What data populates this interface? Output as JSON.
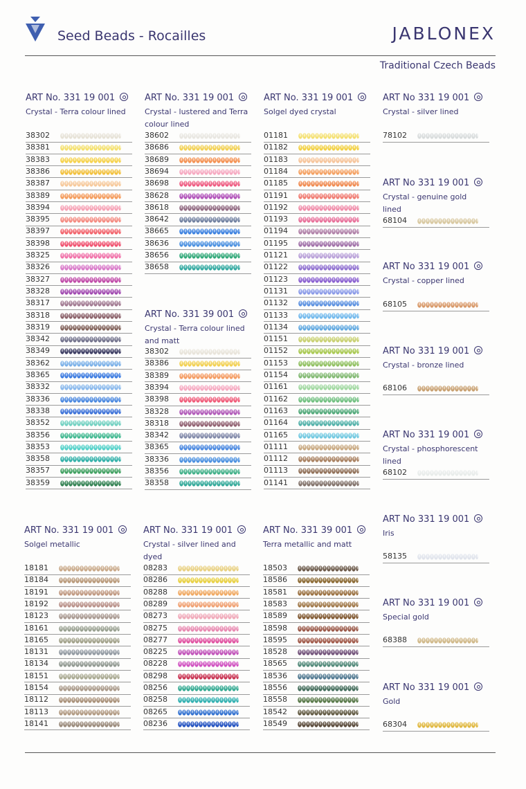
{
  "header": {
    "title": "Seed Beads - Rocailles",
    "brand": "JABLONEX",
    "subtitle": "Traditional Czech Beads"
  },
  "sections": [
    {
      "art": "ART No. 331 19 001",
      "desc": "Crystal - Terra colour lined",
      "items": [
        "38302",
        "38381",
        "38383",
        "38386",
        "38387",
        "38389",
        "38394",
        "38395",
        "38397",
        "38398",
        "38325",
        "38326",
        "38327",
        "38328",
        "38317",
        "38318",
        "38319",
        "38342",
        "38349",
        "38362",
        "38365",
        "38332",
        "38336",
        "38338",
        "38352",
        "38356",
        "38353",
        "38358",
        "38357",
        "38359"
      ],
      "colors": [
        "#e6e2d6",
        "#f4e06a",
        "#f6d24a",
        "#f2c03a",
        "#f6c89a",
        "#f49a5a",
        "#f6a0b4",
        "#f48a80",
        "#f2626a",
        "#f0506e",
        "#f070a8",
        "#d878c8",
        "#c04aa8",
        "#a048b0",
        "#a07890",
        "#8a6068",
        "#806058",
        "#70708a",
        "#3a3a60",
        "#7ab0e8",
        "#3a7ae0",
        "#88b8ec",
        "#4a88e0",
        "#3a70d8",
        "#70d0c0",
        "#40b890",
        "#50d0c8",
        "#30b0a8",
        "#40a060",
        "#308050"
      ]
    },
    {
      "art": "ART No. 331 19 001",
      "desc": "Crystal - lustered and Terra colour lined",
      "items": [
        "38602",
        "38686",
        "38689",
        "38694",
        "38698",
        "38628",
        "38618",
        "38642",
        "38665",
        "38636",
        "38656",
        "38658"
      ],
      "colors": [
        "#e8e6e0",
        "#f2d050",
        "#f49050",
        "#f6a8c0",
        "#ee5a80",
        "#b050b8",
        "#906880",
        "#7080a0",
        "#3a80e0",
        "#4a90e0",
        "#30a878",
        "#30a8a0"
      ]
    },
    {
      "art": "ART No. 331 39 001",
      "desc": "Crystal - Terra colour lined and matt",
      "items": [
        "38302",
        "38386",
        "38389",
        "38394",
        "38398",
        "38328",
        "38318",
        "38342",
        "38365",
        "38336",
        "38356",
        "38358"
      ],
      "colors": [
        "#e8e4da",
        "#f2d050",
        "#f49a60",
        "#f6a8c0",
        "#f05a78",
        "#b058b8",
        "#906070",
        "#8088a8",
        "#4a88e0",
        "#4a90e0",
        "#40b088",
        "#30a898"
      ]
    },
    {
      "art": "ART No. 331 19 001",
      "desc": "Solgel dyed crystal",
      "items": [
        "01181",
        "01182",
        "01183",
        "01184",
        "01185",
        "01191",
        "01192",
        "01193",
        "01194",
        "01195",
        "01121",
        "01122",
        "01123",
        "01131",
        "01132",
        "01133",
        "01134",
        "01151",
        "01152",
        "01153",
        "01154",
        "01161",
        "01162",
        "01163",
        "01164",
        "01165",
        "01111",
        "01112",
        "01113",
        "01141"
      ],
      "colors": [
        "#f4e070",
        "#f2d040",
        "#f6c49a",
        "#f4a060",
        "#f08a50",
        "#f07a70",
        "#f08aa8",
        "#e8709a",
        "#b080a8",
        "#a070a8",
        "#b8a0d8",
        "#9070d0",
        "#8a60d0",
        "#8a9ae8",
        "#5a90e0",
        "#70b8ec",
        "#60a8e0",
        "#c8d070",
        "#a8c850",
        "#90c060",
        "#80b870",
        "#a0d8a0",
        "#70c080",
        "#50a878",
        "#50b0a8",
        "#70c8e0",
        "#c8a880",
        "#a88060",
        "#907058",
        "#807068"
      ]
    },
    {
      "art": "ART No 331 19 001",
      "desc": "Crystal -  silver lined",
      "items": [
        "78102"
      ],
      "colors": [
        "#d8dcdc"
      ]
    },
    {
      "art": "ART No 331 19 001",
      "desc": "Crystal - genuine gold lined",
      "items": [
        "68104"
      ],
      "colors": [
        "#d8c8a0"
      ]
    },
    {
      "art": "ART No 331 19 001",
      "desc": "Crystal - copper lined",
      "items": [
        "68105"
      ],
      "colors": [
        "#d89868"
      ]
    },
    {
      "art": "ART No 331 19 001",
      "desc": "Crystal - bronze lined",
      "items": [
        "68106"
      ],
      "colors": [
        "#c8a070"
      ]
    },
    {
      "art": "ART No 331 19 001",
      "desc": "Crystal - phosphorescent lined",
      "items": [
        "68102"
      ],
      "colors": [
        "#e8ecea"
      ]
    },
    {
      "art": "ART No. 331 19 001",
      "desc": "Solgel metallic",
      "items": [
        "18181",
        "18184",
        "18191",
        "18192",
        "18123",
        "18161",
        "18165",
        "18131",
        "18134",
        "18151",
        "18154",
        "18112",
        "18113",
        "18141"
      ],
      "colors": [
        "#c8a888",
        "#b89878",
        "#c09880",
        "#b89088",
        "#a89890",
        "#98a090",
        "#a0a088",
        "#9098a0",
        "#909890",
        "#a8a890",
        "#a89888",
        "#a89078",
        "#b09880",
        "#988878"
      ]
    },
    {
      "art": "ART No. 331 19 001",
      "desc": "Crystal - silver lined and dyed",
      "items": [
        "08283",
        "08286",
        "08288",
        "08289",
        "08273",
        "08275",
        "08277",
        "08225",
        "08228",
        "08298",
        "08256",
        "08258",
        "08265",
        "08236"
      ],
      "colors": [
        "#e8d080",
        "#e8d040",
        "#f0a860",
        "#f0a070",
        "#f0a8b8",
        "#e888b0",
        "#e050a0",
        "#c050b8",
        "#d050c0",
        "#c83050",
        "#30a890",
        "#30b0b0",
        "#3070d0",
        "#2050c0"
      ]
    },
    {
      "art": "ART No. 331 39 001",
      "desc": "Terra metallic and matt",
      "items": [
        "18503",
        "18586",
        "18581",
        "18583",
        "18589",
        "18598",
        "18595",
        "18528",
        "18565",
        "18536",
        "18556",
        "18558",
        "18542",
        "18549"
      ],
      "colors": [
        "#6a5848",
        "#8a6830",
        "#9a7040",
        "#a07848",
        "#805830",
        "#9a5848",
        "#a05848",
        "#705078",
        "#508878",
        "#507890",
        "#406a58",
        "#587848",
        "#605840",
        "#584838"
      ]
    },
    {
      "art": "ART No 331 19 001",
      "desc": "Iris",
      "items": [
        "58135"
      ],
      "colors": [
        "#e0e4ec"
      ]
    },
    {
      "art": "ART No 331 19 001",
      "desc": "Special gold",
      "items": [
        "68388"
      ],
      "colors": [
        "#d0b888"
      ]
    },
    {
      "art": "ART No 331 19 001",
      "desc": "Gold",
      "items": [
        "68304"
      ],
      "colors": [
        "#e0b840"
      ]
    }
  ]
}
